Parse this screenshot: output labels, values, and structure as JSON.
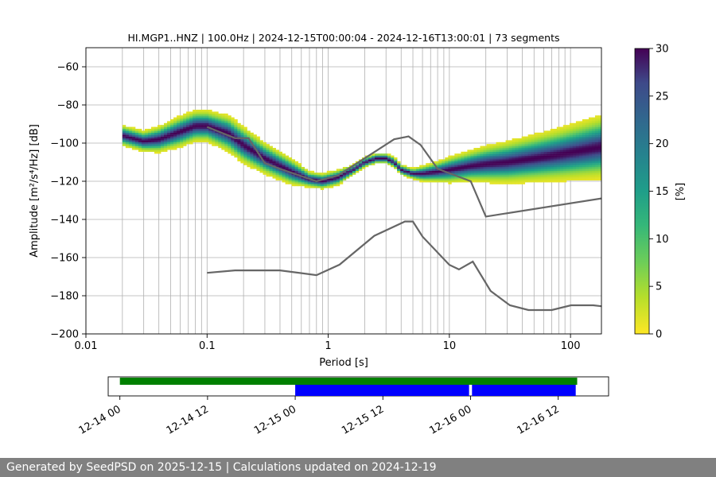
{
  "chart_data": {
    "type": "heatmap",
    "title": "HI.MGP1..HNZ | 100.0Hz | 2024-12-15T00:00:04 - 2024-12-16T13:00:01 | 73 segments",
    "xlabel": "Period [s]",
    "ylabel": "Amplitude [m²/s⁴/Hz] [dB]",
    "xscale": "log",
    "xlim": [
      0.01,
      180
    ],
    "ylim": [
      -200,
      -50
    ],
    "x_ticks": [
      0.01,
      0.1,
      1,
      10,
      100
    ],
    "x_tick_labels": [
      "0.01",
      "0.1",
      "1",
      "10",
      "100"
    ],
    "y_ticks": [
      -200,
      -180,
      -160,
      -140,
      -120,
      -100,
      -80,
      -60
    ],
    "y_tick_labels": [
      "−200",
      "−180",
      "−160",
      "−140",
      "−120",
      "−100",
      "−80",
      "−60"
    ],
    "grid": true,
    "colorbar": {
      "label": "[%]",
      "min": 0,
      "max": 30,
      "ticks": [
        0,
        5,
        10,
        15,
        20,
        25,
        30
      ],
      "colormap": "viridis_r"
    },
    "mode_curve": {
      "period": [
        0.02,
        0.03,
        0.04,
        0.06,
        0.08,
        0.1,
        0.15,
        0.2,
        0.3,
        0.5,
        0.7,
        0.9,
        1.2,
        1.6,
        2.0,
        2.5,
        3.0,
        3.5,
        4.0,
        5.0,
        6.0,
        8.0,
        10,
        15,
        20,
        30,
        50,
        80,
        120,
        180
      ],
      "db": [
        -96,
        -99,
        -98,
        -94,
        -91,
        -91,
        -95,
        -101,
        -108,
        -115,
        -119,
        -120,
        -118,
        -114,
        -110,
        -108,
        -108,
        -110,
        -114,
        -116,
        -116,
        -115,
        -114,
        -112,
        -111,
        -110,
        -108,
        -106,
        -104,
        -102
      ]
    },
    "spread_db": [
      4,
      4,
      5,
      6,
      6,
      6,
      7,
      7,
      6,
      5,
      3,
      3,
      3,
      2,
      2,
      2,
      2,
      2,
      2,
      2,
      3,
      4,
      5,
      6,
      7,
      8,
      9,
      10,
      11,
      12
    ],
    "nhnm": {
      "name": "NHNM",
      "period": [
        0.1,
        0.17,
        0.22,
        0.3,
        0.4,
        0.8,
        1.2,
        2.5,
        3.5,
        4.6,
        5.8,
        8,
        15,
        20,
        180
      ],
      "db": [
        -91.5,
        -97.4,
        -97.4,
        -110.5,
        -113.5,
        -120,
        -117,
        -104,
        -98,
        -96.5,
        -101,
        -113.5,
        -120,
        -138.5,
        -129
      ]
    },
    "nlnm": {
      "name": "NLNM",
      "period": [
        0.1,
        0.17,
        0.4,
        0.8,
        1.24,
        2.4,
        4.3,
        5,
        6,
        10,
        12,
        15.6,
        21.9,
        31.6,
        45,
        70,
        101,
        154,
        180
      ],
      "db": [
        -168,
        -166.7,
        -166.7,
        -169.2,
        -163.7,
        -148.6,
        -141.1,
        -141.1,
        -149,
        -163.8,
        -166.2,
        -162.1,
        -177.5,
        -185,
        -187.5,
        -187.5,
        -185,
        -185,
        -185.5
      ]
    },
    "timeline": {
      "tick_labels": [
        "12-14 00",
        "12-14 12",
        "12-15 00",
        "12-15 12",
        "12-16 00",
        "12-16 12"
      ],
      "tick_hours": [
        0,
        12,
        24,
        36,
        48,
        60
      ],
      "range_hours": [
        -1.6,
        66.9
      ],
      "green": {
        "color": "#008000",
        "start_hour": 0,
        "end_hour": 62.6
      },
      "blue": {
        "color": "#0000ff",
        "segments": [
          [
            24.0,
            47.8
          ],
          [
            48.2,
            62.4
          ]
        ]
      }
    }
  },
  "footer": {
    "text": "Generated by SeedPSD on 2025-12-15 | Calculations updated on 2024-12-19"
  }
}
